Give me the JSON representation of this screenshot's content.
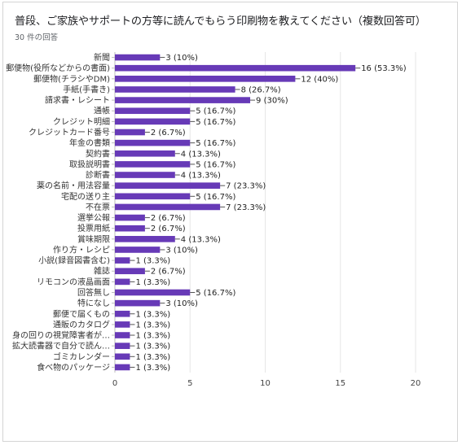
{
  "title": "普段、ご家族やサポートの方等に読んでもらう印刷物を教えてください（複数回答可）",
  "subtitle": "30 件の回答",
  "colors": {
    "bar": "#673ab7",
    "grid": "#e6e6e6",
    "axis": "#bdbdbd"
  },
  "chart_data": {
    "type": "bar",
    "orientation": "horizontal",
    "categories": [
      "新聞",
      "郵便物(役所などからの書面)",
      "郵便物(チラシやDM)",
      "手紙(手書き)",
      "請求書・レシート",
      "通帳",
      "クレジット明細",
      "クレジットカード番号",
      "年金の書類",
      "契約書",
      "取扱説明書",
      "診断書",
      "薬の名前・用法容量",
      "宅配の送り主",
      "不在票",
      "選挙公報",
      "投票用紙",
      "賞味期限",
      "作り方・レシピ",
      "小説(録音図書含む)",
      "雑誌",
      "リモコンの液晶画面",
      "回答無し",
      "特になし",
      "郵便で届くもの",
      "通販のカタログ",
      "身の回りの視覚障害者が…",
      "拡大読書器で自分で読ん…",
      "ゴミカレンダー",
      "食べ物のパッケージ"
    ],
    "values": [
      3,
      16,
      12,
      8,
      9,
      5,
      5,
      2,
      5,
      4,
      5,
      4,
      7,
      5,
      7,
      2,
      2,
      4,
      3,
      1,
      2,
      1,
      5,
      3,
      1,
      1,
      1,
      1,
      1,
      1
    ],
    "data_labels": [
      "3 (10%)",
      "16 (53.3%)",
      "12 (40%)",
      "8 (26.7%)",
      "9 (30%)",
      "5 (16.7%)",
      "5 (16.7%)",
      "2 (6.7%)",
      "5 (16.7%)",
      "4 (13.3%)",
      "5 (16.7%)",
      "4 (13.3%)",
      "7 (23.3%)",
      "5 (16.7%)",
      "7 (23.3%)",
      "2 (6.7%)",
      "2 (6.7%)",
      "4 (13.3%)",
      "3 (10%)",
      "1 (3.3%)",
      "2 (6.7%)",
      "1 (3.3%)",
      "5 (16.7%)",
      "3 (10%)",
      "1 (3.3%)",
      "1 (3.3%)",
      "1 (3.3%)",
      "1 (3.3%)",
      "1 (3.3%)",
      "1 (3.3%)"
    ],
    "xlim": [
      0,
      20
    ],
    "xticks": [
      "0",
      "5",
      "10",
      "15",
      "20"
    ],
    "grid": true
  }
}
